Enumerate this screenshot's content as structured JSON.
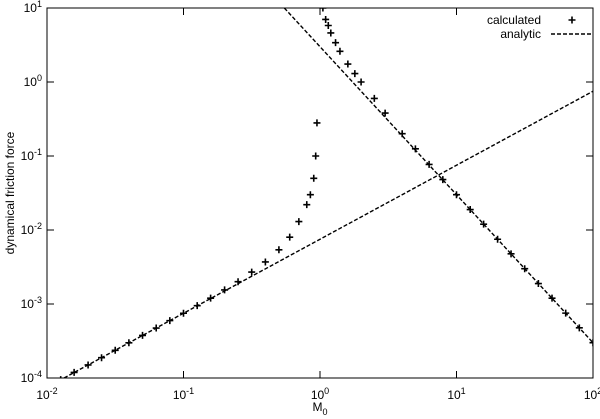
{
  "chart_data": {
    "type": "scatter",
    "log_x": true,
    "log_y": true,
    "x_label": "M_0",
    "y_label": "dynamical friction force",
    "xlim": [
      0.01,
      100
    ],
    "ylim": [
      0.0001,
      10
    ],
    "xticks": [
      {
        "value": 0.01,
        "label": "10^-2"
      },
      {
        "value": 0.1,
        "label": "10^-1"
      },
      {
        "value": 1,
        "label": "10^0"
      },
      {
        "value": 10,
        "label": "10^1"
      },
      {
        "value": 100,
        "label": "10^2"
      }
    ],
    "yticks": [
      {
        "value": 0.0001,
        "label": "10^-4"
      },
      {
        "value": 0.001,
        "label": "10^-3"
      },
      {
        "value": 0.01,
        "label": "10^-2"
      },
      {
        "value": 0.1,
        "label": "10^-1"
      },
      {
        "value": 1,
        "label": "10^0"
      },
      {
        "value": 10,
        "label": "10^1"
      }
    ],
    "legend": "upper right",
    "series": [
      {
        "name": "calculated",
        "color": "#000000",
        "marker": "+",
        "x": [
          0.0126,
          0.0158,
          0.02,
          0.0251,
          0.0316,
          0.0398,
          0.0501,
          0.0631,
          0.0794,
          0.1,
          0.126,
          0.158,
          0.2,
          0.251,
          0.316,
          0.398,
          0.5,
          0.6,
          0.7,
          0.8,
          0.85,
          0.9,
          0.93,
          0.95,
          1.05,
          1.1,
          1.15,
          1.2,
          1.3,
          1.4,
          1.6,
          1.8,
          2,
          2.5,
          3,
          4,
          5,
          6.3,
          7.94,
          10,
          12.6,
          15.8,
          20,
          25.1,
          31.6,
          39.8,
          50.1,
          63.1,
          79.4,
          100
        ],
        "values": [
          9.5e-05,
          0.000119,
          0.00015,
          0.000188,
          0.000237,
          0.000299,
          0.000376,
          0.000473,
          0.000596,
          0.00075,
          0.00095,
          0.0012,
          0.00155,
          0.002,
          0.0027,
          0.0037,
          0.0054,
          0.008,
          0.013,
          0.022,
          0.03,
          0.05,
          0.1,
          0.28,
          10,
          7,
          5.8,
          4.6,
          3.4,
          2.6,
          1.75,
          1.3,
          1.0,
          0.6,
          0.38,
          0.2,
          0.125,
          0.077,
          0.048,
          0.03,
          0.0189,
          0.012,
          0.0075,
          0.00476,
          0.003,
          0.00189,
          0.0012,
          0.000753,
          0.000476,
          0.0003
        ]
      },
      {
        "name": "analytic",
        "color": "#000000",
        "dash": true,
        "x": [
          0.01333,
          100,
          null,
          0.5477,
          100
        ],
        "values": [
          0.0001,
          0.75,
          null,
          10,
          0.0003
        ]
      }
    ]
  }
}
